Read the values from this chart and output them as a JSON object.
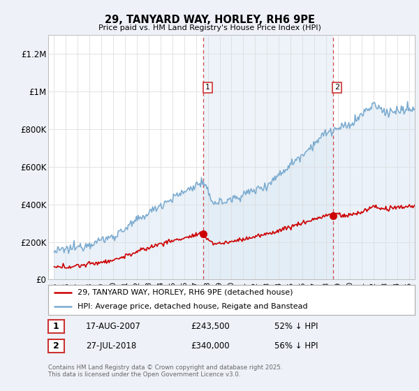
{
  "title1": "29, TANYARD WAY, HORLEY, RH6 9PE",
  "title2": "Price paid vs. HM Land Registry's House Price Index (HPI)",
  "legend_red": "29, TANYARD WAY, HORLEY, RH6 9PE (detached house)",
  "legend_blue": "HPI: Average price, detached house, Reigate and Banstead",
  "footnote": "Contains HM Land Registry data © Crown copyright and database right 2025.\nThis data is licensed under the Open Government Licence v3.0.",
  "sale1_date": "17-AUG-2007",
  "sale1_price": "£243,500",
  "sale1_hpi": "52% ↓ HPI",
  "sale2_date": "27-JUL-2018",
  "sale2_price": "£340,000",
  "sale2_hpi": "56% ↓ HPI",
  "sale1_x": 2007.63,
  "sale1_y": 243500,
  "sale2_x": 2018.57,
  "sale2_y": 340000,
  "ylim": [
    0,
    1300000
  ],
  "xlim": [
    1994.5,
    2025.5
  ],
  "background_color": "#eef2f8",
  "plot_bg_color": "#ffffff",
  "red_color": "#cc0000",
  "blue_color": "#7aaacf",
  "blue_fill_color": "#dce9f5",
  "vline_color": "#cc3333",
  "grid_color": "#dddddd",
  "label_box_color": "#cc3333"
}
